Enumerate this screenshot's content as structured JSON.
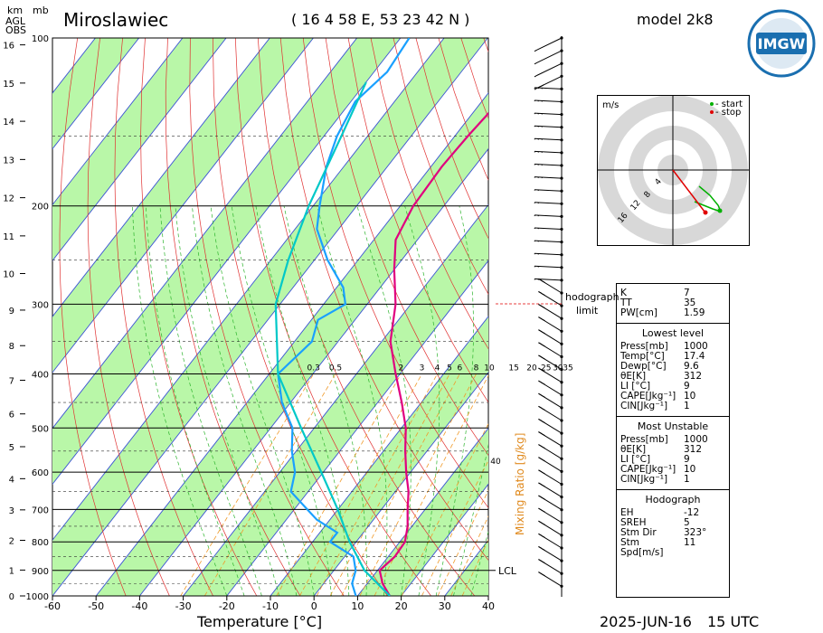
{
  "header": {
    "station": "Miroslawiec",
    "coords": "( 16 4 58 E, 53 23 42 N )",
    "model": "model 2k8",
    "unit_km": "km",
    "unit_agl": "AGL",
    "unit_obs": "OBS",
    "unit_mb": "mb"
  },
  "footer": {
    "xlabel": "Temperature [°C]",
    "date": "2025-JUN-16",
    "time": "15 UTC"
  },
  "logo": {
    "text": "IMGW",
    "color": "#1a6fb0"
  },
  "hodograph": {
    "unit": "m/s",
    "legend_start": "- start",
    "legend_stop": "- stop",
    "start_color": "#00a000",
    "stop_color": "#e00000",
    "ring_labels": [
      "4",
      "8",
      "12",
      "16"
    ],
    "limit_label_1": "hodograph",
    "limit_label_2": "limit"
  },
  "indices": {
    "top": [
      {
        "k": "K",
        "v": "7"
      },
      {
        "k": "TT",
        "v": "35"
      },
      {
        "k": "PW[cm]",
        "v": "1.59"
      }
    ],
    "lowest_title": "Lowest level",
    "lowest": [
      {
        "k": "Press[mb]",
        "v": "1000"
      },
      {
        "k": "Temp[°C]",
        "v": "17.4"
      },
      {
        "k": "Dewp[°C]",
        "v": "9.6"
      },
      {
        "k": "θE[K]",
        "v": "312"
      },
      {
        "k": "LI [°C]",
        "v": "9"
      },
      {
        "k": "CAPE[Jkg⁻¹]",
        "v": "10"
      },
      {
        "k": "CIN[Jkg⁻¹]",
        "v": "1"
      }
    ],
    "unstable_title": "Most Unstable",
    "unstable": [
      {
        "k": "Press[mb]",
        "v": "1000"
      },
      {
        "k": "θE[K]",
        "v": "312"
      },
      {
        "k": "LI [°C]",
        "v": "9"
      },
      {
        "k": "CAPE[Jkg⁻¹]",
        "v": "10"
      },
      {
        "k": "CIN[Jkg⁻¹]",
        "v": "1"
      }
    ],
    "hodo_title": "Hodograph",
    "hodo": [
      {
        "k": "EH",
        "v": "-12"
      },
      {
        "k": "SREH",
        "v": "5"
      },
      {
        "k": "Stm Dir",
        "v": "323°"
      },
      {
        "k": "Stm Spd[m/s]",
        "v": "11"
      }
    ]
  },
  "chart_data": {
    "type": "line",
    "title": "Miroslawiec",
    "xlabel": "Temperature [°C]",
    "ylabel": "mb",
    "xlim": [
      -60,
      40
    ],
    "x_ticks": [
      -60,
      -50,
      -40,
      -30,
      -20,
      -10,
      0,
      10,
      20,
      30,
      40
    ],
    "pressure_ticks": [
      100,
      200,
      300,
      400,
      500,
      600,
      700,
      800,
      900,
      1000
    ],
    "km_ticks": [
      0,
      1,
      2,
      3,
      4,
      5,
      6,
      7,
      8,
      9,
      10,
      11,
      12,
      13,
      14,
      15,
      16
    ],
    "mixing_ratio_label": "Mixing Ratio [g/kg]",
    "mixing_ratio_ticks": [
      "0.3",
      "0.5",
      "2",
      "3",
      "4",
      "5",
      "6",
      "8",
      "10",
      "15",
      "20",
      "25",
      "30",
      "35"
    ],
    "mixing_ratio_40": "40",
    "lcl_label": "LCL",
    "series": [
      {
        "name": "Temperature",
        "color": "#e0007f",
        "points": [
          [
            1000,
            17.4
          ],
          [
            950,
            13.5
          ],
          [
            900,
            10.5
          ],
          [
            850,
            11.5
          ],
          [
            800,
            11.2
          ],
          [
            750,
            9.0
          ],
          [
            700,
            6.0
          ],
          [
            650,
            3.0
          ],
          [
            600,
            -1.0
          ],
          [
            550,
            -5.0
          ],
          [
            500,
            -9.0
          ],
          [
            450,
            -14.5
          ],
          [
            400,
            -21.0
          ],
          [
            350,
            -28.0
          ],
          [
            300,
            -33.5
          ],
          [
            260,
            -40.0
          ],
          [
            230,
            -45.0
          ],
          [
            200,
            -47.0
          ],
          [
            170,
            -47.5
          ],
          [
            150,
            -47.0
          ],
          [
            130,
            -46.0
          ],
          [
            115,
            -46.0
          ],
          [
            100,
            -46.5
          ]
        ]
      },
      {
        "name": "Dewpoint",
        "color": "#1aa0ff",
        "points": [
          [
            1000,
            9.6
          ],
          [
            950,
            6.5
          ],
          [
            900,
            5.0
          ],
          [
            850,
            2.0
          ],
          [
            800,
            -6.0
          ],
          [
            770,
            -6.0
          ],
          [
            730,
            -13.0
          ],
          [
            700,
            -17.0
          ],
          [
            650,
            -24.0
          ],
          [
            600,
            -26.5
          ],
          [
            550,
            -31.0
          ],
          [
            500,
            -35.0
          ],
          [
            450,
            -42.0
          ],
          [
            400,
            -48.0
          ],
          [
            350,
            -46.0
          ],
          [
            320,
            -48.5
          ],
          [
            300,
            -45.0
          ],
          [
            280,
            -48.5
          ],
          [
            250,
            -57.0
          ],
          [
            220,
            -65.0
          ],
          [
            200,
            -68.5
          ],
          [
            170,
            -74.0
          ],
          [
            150,
            -77.0
          ],
          [
            130,
            -79.0
          ],
          [
            115,
            -77.0
          ],
          [
            100,
            -78.0
          ]
        ]
      },
      {
        "name": "Parcel",
        "color": "#00c8c8",
        "points": [
          [
            1000,
            17.4
          ],
          [
            900,
            7.0
          ],
          [
            800,
            -1.5
          ],
          [
            700,
            -10.0
          ],
          [
            600,
            -20.5
          ],
          [
            500,
            -33.0
          ],
          [
            400,
            -48.0
          ],
          [
            300,
            -61.0
          ],
          [
            250,
            -66.0
          ],
          [
            200,
            -71.0
          ],
          [
            150,
            -76.0
          ],
          [
            120,
            -80.0
          ]
        ]
      }
    ]
  }
}
